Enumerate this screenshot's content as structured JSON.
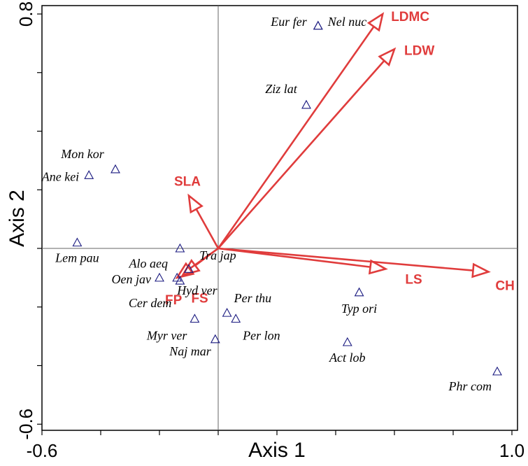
{
  "chart_data": {
    "type": "scatter",
    "subtype": "ordination-biplot",
    "xlabel": "Axis 1",
    "ylabel": "Axis 2",
    "xlim": [
      -0.62,
      1.02
    ],
    "ylim": [
      -0.6,
      0.82
    ],
    "x_tick_labels": [
      {
        "value": -0.6,
        "label": "-0.6"
      },
      {
        "value": 1.0,
        "label": "1.0"
      }
    ],
    "x_minor_ticks": [
      -0.6,
      -0.4,
      -0.2,
      0.0,
      0.2,
      0.4,
      0.6,
      0.8,
      1.0
    ],
    "y_tick_labels": [
      {
        "value": 0.8,
        "label": "0.8"
      },
      {
        "value": -0.6,
        "label": "-0.6"
      }
    ],
    "y_minor_ticks": [
      -0.6,
      -0.4,
      -0.2,
      0.0,
      0.2,
      0.4,
      0.6,
      0.8
    ],
    "reference_lines": {
      "x": 0.0,
      "y": 0.0
    },
    "colors": {
      "arrow": "#e03c3c",
      "marker": "#1a1a80",
      "frame": "#000000",
      "reference": "#666666"
    },
    "species": [
      {
        "label": "Eur fer",
        "x": 0.34,
        "y": 0.76
      },
      {
        "label": "Nel nuc",
        "x": 0.34,
        "y": 0.76
      },
      {
        "label": "Ziz lat",
        "x": 0.3,
        "y": 0.49
      },
      {
        "label": "Mon kor",
        "x": -0.35,
        "y": 0.27
      },
      {
        "label": "Ane kei",
        "x": -0.44,
        "y": 0.25
      },
      {
        "label": "Lem pau",
        "x": -0.48,
        "y": 0.02
      },
      {
        "label": "Tra jap",
        "x": -0.13,
        "y": 0.0
      },
      {
        "label": "Alo aeq",
        "x": -0.1,
        "y": -0.07
      },
      {
        "label": "Hyd ver",
        "x": -0.14,
        "y": -0.1
      },
      {
        "label": "Oen jav",
        "x": -0.2,
        "y": -0.1
      },
      {
        "label": "Cer dem",
        "x": -0.13,
        "y": -0.11
      },
      {
        "label": "Per thu",
        "x": 0.03,
        "y": -0.22
      },
      {
        "label": "Per lon",
        "x": 0.06,
        "y": -0.24
      },
      {
        "label": "Myr ver",
        "x": -0.08,
        "y": -0.24
      },
      {
        "label": "Naj mar",
        "x": -0.01,
        "y": -0.31
      },
      {
        "label": "Typ ori",
        "x": 0.48,
        "y": -0.15
      },
      {
        "label": "Act lob",
        "x": 0.44,
        "y": -0.32
      },
      {
        "label": "Phr com",
        "x": 0.95,
        "y": -0.42
      }
    ],
    "trait_vectors": [
      {
        "label": "LDMC",
        "x": 0.56,
        "y": 0.8
      },
      {
        "label": "LDW",
        "x": 0.6,
        "y": 0.68
      },
      {
        "label": "SLA",
        "x": -0.1,
        "y": 0.18
      },
      {
        "label": "LS",
        "x": 0.57,
        "y": -0.07
      },
      {
        "label": "CH",
        "x": 0.92,
        "y": -0.08
      },
      {
        "label": "FP",
        "x": -0.14,
        "y": -0.1
      },
      {
        "label": "FS",
        "x": -0.12,
        "y": -0.09
      }
    ]
  }
}
